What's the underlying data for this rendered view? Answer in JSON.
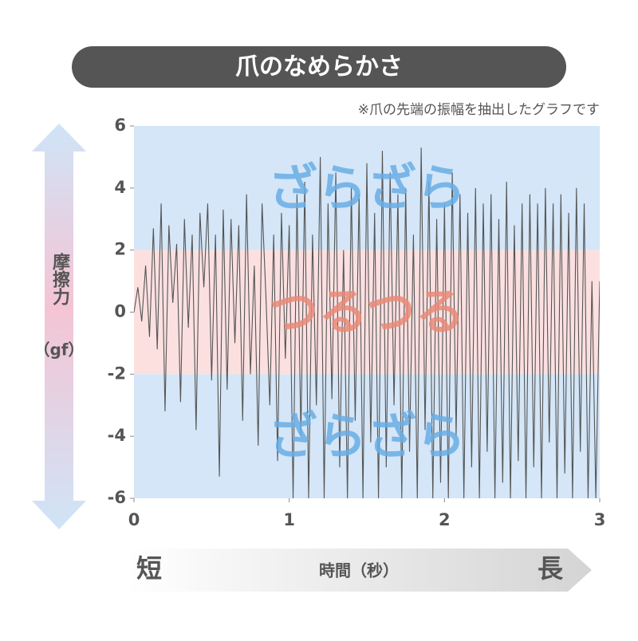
{
  "chart_data": {
    "type": "line",
    "title": "爪のなめらかさ",
    "subtitle": "※爪の先端の振幅を抽出したグラフです",
    "y_label": "摩擦力",
    "y_unit": "（gf）",
    "x_label": "時間（秒）",
    "x_start_label": "短",
    "x_end_label": "長",
    "bands": [
      {
        "from": 2,
        "to": 6,
        "label": "ざらざら",
        "color": "#d4e6f7",
        "label_color": "#6aaee6"
      },
      {
        "from": -2,
        "to": 2,
        "label": "つるつる",
        "color": "#fce0e0",
        "label_color": "#ea8a78"
      },
      {
        "from": -6,
        "to": -2,
        "label": "ざらざら",
        "color": "#d4e6f7",
        "label_color": "#6aaee6"
      }
    ],
    "xlim": [
      0,
      3
    ],
    "xticks": [
      0,
      1,
      2,
      3
    ],
    "ylim": [
      -6,
      6
    ],
    "yticks": [
      -6,
      -4,
      -2,
      0,
      2,
      4,
      6
    ],
    "series": [
      {
        "color": "#555555",
        "x": [
          0,
          0.025,
          0.05,
          0.075,
          0.1,
          0.125,
          0.15,
          0.175,
          0.2,
          0.225,
          0.25,
          0.275,
          0.3,
          0.325,
          0.35,
          0.375,
          0.4,
          0.425,
          0.45,
          0.475,
          0.5,
          0.525,
          0.55,
          0.575,
          0.6,
          0.625,
          0.65,
          0.675,
          0.7,
          0.725,
          0.75,
          0.775,
          0.8,
          0.825,
          0.85,
          0.875,
          0.9,
          0.925,
          0.95,
          0.975,
          1,
          1.025,
          1.05,
          1.075,
          1.1,
          1.125,
          1.15,
          1.175,
          1.2,
          1.225,
          1.25,
          1.275,
          1.3,
          1.325,
          1.35,
          1.375,
          1.4,
          1.425,
          1.45,
          1.475,
          1.5,
          1.525,
          1.55,
          1.575,
          1.6,
          1.625,
          1.65,
          1.675,
          1.7,
          1.725,
          1.75,
          1.775,
          1.8,
          1.825,
          1.85,
          1.875,
          1.9,
          1.925,
          1.95,
          1.975,
          2,
          2.025,
          2.05,
          2.075,
          2.1,
          2.125,
          2.15,
          2.175,
          2.2,
          2.225,
          2.25,
          2.275,
          2.3,
          2.325,
          2.35,
          2.375,
          2.4,
          2.425,
          2.45,
          2.475,
          2.5,
          2.525,
          2.55,
          2.575,
          2.6,
          2.625,
          2.65,
          2.675,
          2.7,
          2.725,
          2.75,
          2.775,
          2.8,
          2.825,
          2.85,
          2.875,
          2.9,
          2.925,
          2.95,
          2.975,
          3
        ],
        "values": [
          0,
          0.8,
          -0.3,
          1.5,
          -0.8,
          2.7,
          -1.2,
          3.5,
          -3.2,
          2.8,
          0.3,
          2.2,
          -2.9,
          3.0,
          -0.5,
          2.5,
          -3.8,
          3.2,
          0.8,
          3.5,
          -2.2,
          2.5,
          -5.3,
          3.3,
          -2.5,
          3.0,
          -1.0,
          2.8,
          -3.5,
          3.8,
          -2.0,
          1.5,
          -4.3,
          3.5,
          0.5,
          -3.0,
          2.5,
          -4.8,
          3.2,
          -1.5,
          2.8,
          -6,
          3.8,
          -4.0,
          4.2,
          -6,
          2.5,
          -3.0,
          5.0,
          -6,
          3.5,
          -2.8,
          4.5,
          -5.0,
          2.0,
          -6,
          4.0,
          -3.5,
          3.8,
          -6,
          4.8,
          -4.2,
          3.2,
          -6,
          5.2,
          -5.0,
          4.5,
          -3.0,
          3.8,
          -6,
          4.0,
          -4.5,
          2.5,
          -6,
          5.3,
          -3.8,
          4.2,
          -6,
          3.0,
          -5.5,
          3.5,
          -6,
          4.5,
          -4.0,
          3.8,
          -6,
          3.2,
          -5.0,
          4.0,
          -6,
          3.5,
          -4.5,
          3.8,
          -6,
          3.0,
          -5.5,
          4.2,
          -6,
          2.8,
          -4.8,
          3.5,
          -6,
          3.8,
          -5.0,
          3.5,
          -6,
          4.0,
          -4.2,
          3.5,
          -6,
          3.8,
          -5.2,
          3.2,
          -6,
          4.0,
          -4.5,
          3.5,
          -6,
          1.0,
          -6,
          1.0
        ]
      }
    ]
  }
}
